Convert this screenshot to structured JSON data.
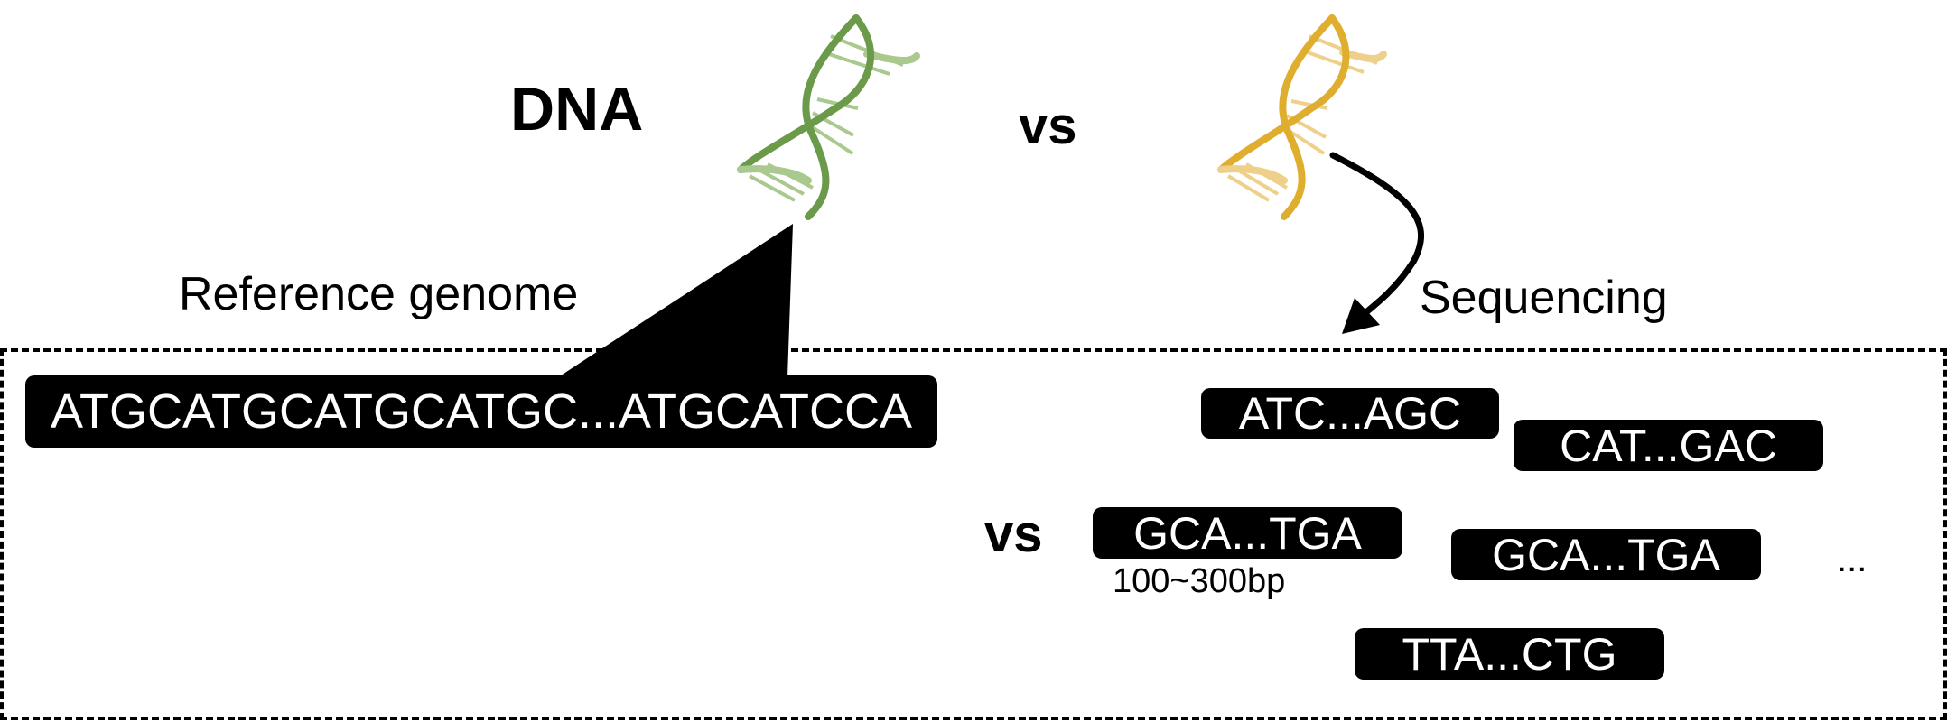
{
  "header": {
    "dna_label": "DNA",
    "vs_top": "vs"
  },
  "left": {
    "reference_label": "Reference genome",
    "reference_sequence": "ATGCATGCATGCATGC...ATGCATCCA"
  },
  "right": {
    "sequencing_label": "Sequencing",
    "vs_middle": "vs",
    "reads": [
      "ATC...AGC",
      "CAT...GAC",
      "GCA...TGA",
      "GCA...TGA",
      "TTA...CTG"
    ],
    "read_length_note": "100~300bp",
    "ellipsis": "..."
  },
  "colors": {
    "reference_dna": "#6a9a4a",
    "sample_dna": "#e0ae2e",
    "pill_bg": "#000000"
  },
  "icons": [
    "dna-helix-green-icon",
    "dna-helix-yellow-icon",
    "curved-arrow-icon"
  ]
}
